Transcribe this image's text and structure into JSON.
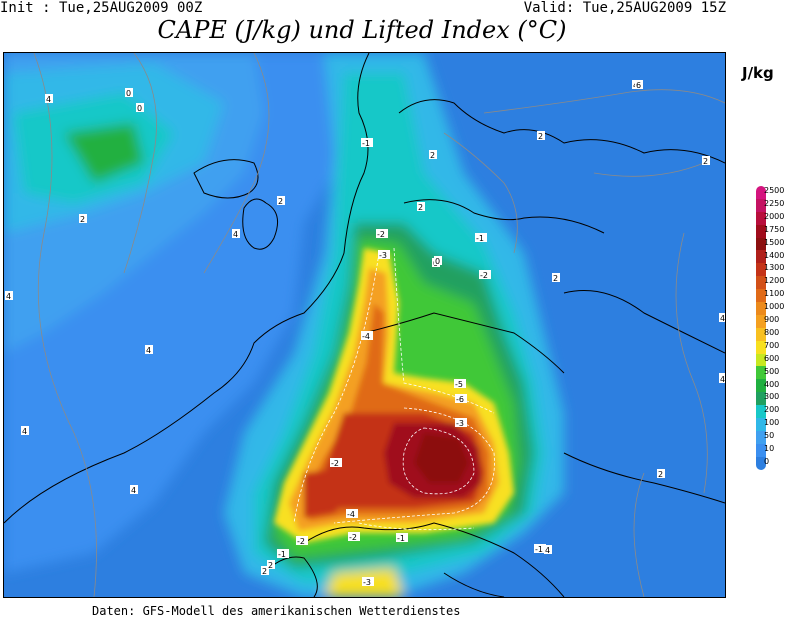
{
  "header": {
    "init": "Init : Tue,25AUG2009 00Z",
    "valid": "Valid: Tue,25AUG2009 15Z",
    "title": "CAPE (J/kg) und Lifted Index (°C)"
  },
  "colorbar": {
    "unit": "J/kg",
    "levels": [
      "2500",
      "2250",
      "2000",
      "1750",
      "1500",
      "1400",
      "1300",
      "1200",
      "1100",
      "1000",
      "900",
      "800",
      "700",
      "600",
      "500",
      "400",
      "300",
      "200",
      "100",
      "50",
      "10",
      "0"
    ],
    "colors": [
      "#d4147e",
      "#c41262",
      "#b80e3c",
      "#a00c1c",
      "#8c1010",
      "#b0201a",
      "#c43318",
      "#d25018",
      "#e06a18",
      "#ec8a1c",
      "#f4a020",
      "#f8c020",
      "#f8e020",
      "#c8e820",
      "#40c838",
      "#20b040",
      "#20a060",
      "#18c8c8",
      "#30b8e8",
      "#40a0f0",
      "#3b8ff0",
      "#2d7fe0"
    ]
  },
  "lifted_index_labels": [
    "4",
    "0",
    "0",
    "2",
    "4",
    "2",
    "4",
    "4",
    "4",
    "4",
    "2",
    "-1",
    "-2",
    "-3",
    "-4",
    "-5",
    "-6",
    "-3",
    "-2",
    "-1",
    "-2",
    "-2",
    "-4",
    "-2",
    "-1",
    "0",
    "-1",
    "-3",
    "-1",
    "2",
    "2",
    "4",
    "4",
    "2",
    "2",
    "2",
    "2",
    "4",
    "2",
    "4",
    "6",
    "4",
    "0"
  ],
  "footer": "Daten: GFS-Modell des amerikanischen Wetterdienstes"
}
